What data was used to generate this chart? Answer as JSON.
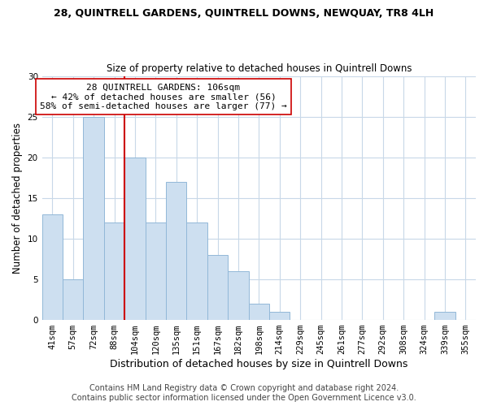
{
  "title": "28, QUINTRELL GARDENS, QUINTRELL DOWNS, NEWQUAY, TR8 4LH",
  "subtitle": "Size of property relative to detached houses in Quintrell Downs",
  "xlabel": "Distribution of detached houses by size in Quintrell Downs",
  "ylabel": "Number of detached properties",
  "bar_labels": [
    "41sqm",
    "57sqm",
    "72sqm",
    "88sqm",
    "104sqm",
    "120sqm",
    "135sqm",
    "151sqm",
    "167sqm",
    "182sqm",
    "198sqm",
    "214sqm",
    "229sqm",
    "245sqm",
    "261sqm",
    "277sqm",
    "292sqm",
    "308sqm",
    "324sqm",
    "339sqm",
    "355sqm"
  ],
  "bar_values": [
    13,
    5,
    25,
    12,
    20,
    12,
    17,
    12,
    8,
    6,
    2,
    1,
    0,
    0,
    0,
    0,
    0,
    0,
    0,
    1,
    0
  ],
  "bar_color": "#cddff0",
  "bar_edge_color": "#92b8d8",
  "vline_x": 4.0,
  "vline_color": "#cc0000",
  "annotation_text_line1": "28 QUINTRELL GARDENS: 106sqm",
  "annotation_text_line2": "← 42% of detached houses are smaller (56)",
  "annotation_text_line3": "58% of semi-detached houses are larger (77) →",
  "ylim": [
    0,
    30
  ],
  "yticks": [
    0,
    5,
    10,
    15,
    20,
    25,
    30
  ],
  "background_color": "#ffffff",
  "grid_color": "#c8d8e8",
  "footer_line1": "Contains HM Land Registry data © Crown copyright and database right 2024.",
  "footer_line2": "Contains public sector information licensed under the Open Government Licence v3.0.",
  "title_fontsize": 9,
  "subtitle_fontsize": 8.5,
  "xlabel_fontsize": 9,
  "ylabel_fontsize": 8.5,
  "annotation_fontsize": 8,
  "footer_fontsize": 7,
  "tick_fontsize": 7.5
}
